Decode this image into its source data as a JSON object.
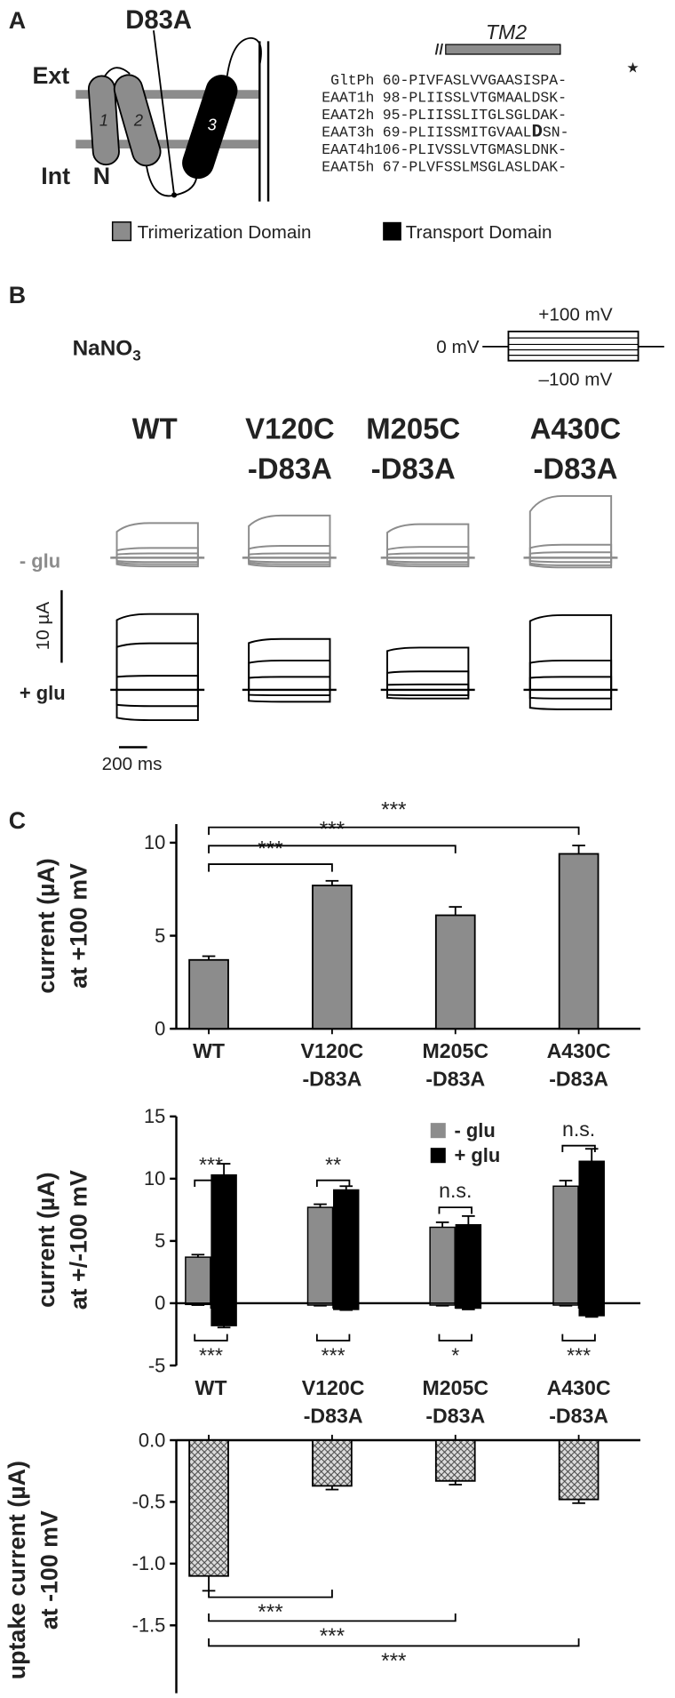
{
  "panel_a": {
    "label": "A",
    "mutation": "D83A",
    "ext": "Ext",
    "int": "Int",
    "n_terminus": "N",
    "helices": [
      "1",
      "2",
      "3"
    ],
    "tm_label": "TM2",
    "conserved_marker": "★",
    "alignment": [
      {
        "name": "GltPh",
        "start": "60-",
        "sequence": [
          "PIVFASLVVGAASISPA-"
        ]
      },
      {
        "name": "EAAT1h",
        "start": "98-",
        "sequence": [
          "PLIISSLVTGMAALDSK-"
        ]
      },
      {
        "name": "EAAT2h",
        "start": "95-",
        "sequence": [
          "PLIISSLITGLSGLDAK-"
        ]
      },
      {
        "name": "EAAT3h",
        "start": "69-",
        "sequence": [
          "PLIISSMITGVAAL",
          "D",
          "SN-"
        ]
      },
      {
        "name": "EAAT4h",
        "start": "106-",
        "sequence": [
          "PLIVSSLVTGMASLDNK-"
        ]
      },
      {
        "name": "EAAT5h",
        "start": "67-",
        "sequence": [
          "PLVFSSLMSGLASLDAK-"
        ]
      }
    ],
    "legend": [
      "Trimerization Domain",
      "Transport Domain"
    ]
  },
  "panel_b": {
    "label": "B",
    "solution": [
      "NaNO",
      "3"
    ],
    "protocol": {
      "high": "+100 mV",
      "hold": "0 mV",
      "low": "–100 mV"
    },
    "constructs": [
      [
        "WT"
      ],
      [
        "V120C",
        "-D83A"
      ],
      [
        "M205C",
        "-D83A"
      ],
      [
        "A430C",
        "-D83A"
      ]
    ],
    "conditions": [
      "- glu",
      "+ glu"
    ],
    "scale_current": "10 µA",
    "scale_time": "200 ms"
  },
  "panel_c": {
    "label": "C"
  },
  "chart_data": [
    {
      "type": "bar",
      "y_label": [
        "current (µA)",
        "at +100 mV"
      ],
      "categories": [
        [
          "WT"
        ],
        [
          "V120C",
          "-D83A"
        ],
        [
          "M205C",
          "-D83A"
        ],
        [
          "A430C",
          "-D83A"
        ]
      ],
      "values": [
        3.7,
        7.7,
        6.1,
        9.4
      ],
      "errors": [
        0.2,
        0.25,
        0.45,
        0.45
      ],
      "color": "#8c8c8c",
      "ylim": [
        0,
        11
      ],
      "yticks": [
        0,
        5,
        10
      ],
      "significance": [
        "***",
        "***",
        "***"
      ]
    },
    {
      "type": "grouped_bar",
      "y_label": [
        "current (µA)",
        "at +/-100 mV"
      ],
      "categories": [
        [
          "WT"
        ],
        [
          "V120C",
          "-D83A"
        ],
        [
          "M205C",
          "-D83A"
        ],
        [
          "A430C",
          "-D83A"
        ]
      ],
      "series": [
        {
          "name": "- glu",
          "color": "#8c8c8c",
          "values": [
            3.7,
            7.7,
            6.1,
            9.4
          ],
          "errors": [
            0.2,
            0.25,
            0.4,
            0.45
          ],
          "values_neg": [
            -0.1,
            -0.15,
            -0.15,
            -0.15
          ],
          "errors_neg": [
            0.05,
            0.05,
            0.05,
            0.05
          ]
        },
        {
          "name": "+ glu",
          "color": "#000000",
          "values": [
            10.3,
            9.1,
            6.3,
            11.4
          ],
          "errors": [
            0.9,
            0.3,
            0.7,
            1.0
          ],
          "values_neg": [
            -1.8,
            -0.5,
            -0.4,
            -1.0
          ],
          "errors_neg": [
            0.15,
            0.05,
            0.1,
            0.1
          ]
        }
      ],
      "ylim": [
        -5,
        15
      ],
      "yticks": [
        -5,
        0,
        5,
        10,
        15
      ],
      "significance_top": [
        "***",
        "**",
        "n.s.",
        "n.s."
      ],
      "significance_bottom": [
        "***",
        "***",
        "*",
        "***"
      ]
    },
    {
      "type": "bar",
      "hatched": true,
      "y_label": [
        "uptake current (µA)",
        "at -100 mV"
      ],
      "values": [
        -1.1,
        -0.37,
        -0.33,
        -0.48
      ],
      "errors": [
        0.12,
        0.03,
        0.03,
        0.03
      ],
      "color": "#d9d9d9",
      "ylim": [
        -2.05,
        0
      ],
      "yticks": [
        {
          "value": 0,
          "label": "0.0"
        },
        -0.5,
        {
          "value": -1,
          "label": "-1.0"
        },
        -1.5
      ],
      "significance": [
        "***",
        "***",
        "***"
      ]
    }
  ]
}
